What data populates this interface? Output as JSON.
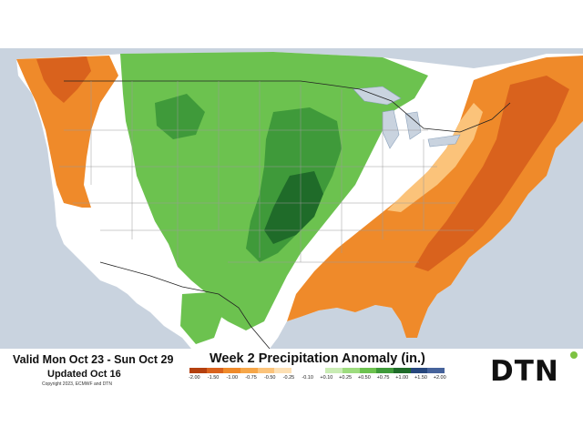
{
  "footer": {
    "valid_text": "Valid Mon Oct 23 - Sun Oct 29",
    "updated_text": "Updated Oct 16",
    "copyright_text": "Copyright 2023, ECMWF and DTN",
    "title": "Week 2 Precipitation Anomaly (in.)"
  },
  "legend": {
    "ticks": [
      "-2.00",
      "-1.50",
      "-1.00",
      "-0.75",
      "-0.50",
      "-0.25",
      "-0.10",
      "+0.10",
      "+0.25",
      "+0.50",
      "+0.75",
      "+1.00",
      "+1.50",
      "+2.00"
    ],
    "colors": [
      "#b4400f",
      "#d9621d",
      "#ef8a2a",
      "#f6a648",
      "#fbc37a",
      "#fde0b4",
      "#ffffff",
      "#ffffff",
      "#c9ecb4",
      "#9ddc7e",
      "#6cc24f",
      "#3f9a3a",
      "#1f6b29",
      "#27477d",
      "#46639b"
    ]
  },
  "logo": {
    "text": "DTN"
  },
  "map": {
    "region": "Contiguous United States",
    "colors": {
      "water": "#c9d3df",
      "dry_strong": "#d9621d",
      "dry": "#ef8a2a",
      "dry_light": "#fbc37a",
      "neutral": "#ffffff",
      "wet_light": "#9ddc7e",
      "wet": "#6cc24f",
      "wet_strong": "#3f9a3a",
      "wet_heavy": "#1f6b29"
    }
  }
}
